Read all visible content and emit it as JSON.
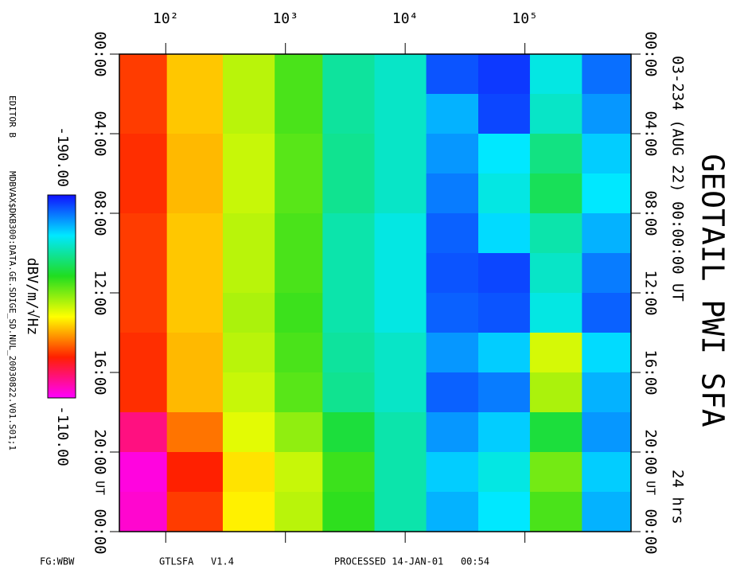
{
  "chart_data": {
    "type": "spectrogram",
    "title": "GEOTAIL PWI SFA",
    "subtitle": "03-234 (AUG 22) 00:00:00 UT",
    "duration": "24 hrs",
    "time_label": "UT",
    "time_bins": [
      0,
      2,
      4,
      6,
      8,
      10,
      12,
      14,
      16,
      18,
      20,
      22,
      24
    ],
    "freq_bins": [
      41,
      103,
      302,
      819,
      2057,
      5580,
      15100,
      41100,
      111000,
      302000,
      770000
    ],
    "values": [
      [
        -128,
        -138,
        -147,
        -155,
        -167,
        -170,
        -185,
        -187,
        -172,
        -183
      ],
      [
        -128,
        -138,
        -147,
        -155,
        -167,
        -170,
        -178,
        -186,
        -170,
        -180
      ],
      [
        -127,
        -137,
        -146,
        -154,
        -166,
        -170,
        -180,
        -174,
        -165,
        -176
      ],
      [
        -127,
        -137,
        -146,
        -154,
        -166,
        -170,
        -182,
        -172,
        -162,
        -174
      ],
      [
        -128,
        -138,
        -147,
        -155,
        -168,
        -172,
        -184,
        -175,
        -168,
        -178
      ],
      [
        -128,
        -138,
        -147,
        -155,
        -168,
        -172,
        -185,
        -186,
        -170,
        -182
      ],
      [
        -128,
        -138,
        -148,
        -156,
        -168,
        -172,
        -184,
        -185,
        -172,
        -184
      ],
      [
        -127,
        -137,
        -147,
        -155,
        -167,
        -170,
        -180,
        -176,
        -145,
        -175
      ],
      [
        -127,
        -137,
        -146,
        -154,
        -166,
        -170,
        -184,
        -182,
        -148,
        -178
      ],
      [
        -118,
        -132,
        -144,
        -150,
        -160,
        -168,
        -180,
        -176,
        -160,
        -180
      ],
      [
        -112,
        -126,
        -140,
        -146,
        -156,
        -168,
        -176,
        -172,
        -152,
        -176
      ],
      [
        -113,
        -128,
        -141,
        -147,
        -157,
        -168,
        -178,
        -174,
        -155,
        -178
      ]
    ],
    "xlim": [
      0,
      24
    ],
    "xticks": [
      {
        "value": 0,
        "label": "00:00"
      },
      {
        "value": 4,
        "label": "04:00"
      },
      {
        "value": 8,
        "label": "08:00"
      },
      {
        "value": 12,
        "label": "12:00"
      },
      {
        "value": 16,
        "label": "16:00"
      },
      {
        "value": 20,
        "label": "20:00"
      },
      {
        "value": 24,
        "label": "00:00"
      }
    ],
    "ylim": [
      41,
      770000
    ],
    "log_y": true,
    "yticks": [
      {
        "value": 100,
        "label": "10²"
      },
      {
        "value": 1000,
        "label": "10³"
      },
      {
        "value": 10000,
        "label": "10⁴"
      },
      {
        "value": 100000,
        "label": "10⁵"
      }
    ],
    "colorbar_label": "dBV/m/√Hz",
    "clim": [
      -190,
      -110
    ],
    "cticks": [
      {
        "value": -190,
        "label": "-190.00"
      },
      {
        "value": -110,
        "label": "-110.00"
      }
    ],
    "colormap": [
      "#1010ff",
      "#00e8ff",
      "#20dd20",
      "#ffff00",
      "#ff2000",
      "#ff00ff"
    ],
    "editor": "EDITOR B",
    "source": "MDBVAX$DKB300:DATA.GE.SDIGE_SD.NUL_20030822.V01.S01;1",
    "footer": [
      "FG:WBW",
      "GTLSFA   V1.4",
      "PROCESSED 14-JAN-01   00:54"
    ]
  }
}
